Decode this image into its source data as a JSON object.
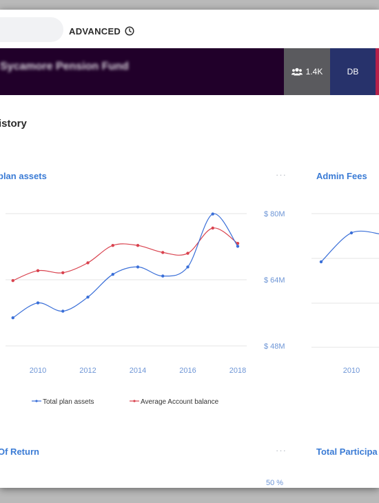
{
  "toolbar": {
    "advanced_label": "ADVANCED"
  },
  "banner": {
    "fund_name": "Sycamore Pension Fund",
    "members_count": "1.4K",
    "plan_type": "DB"
  },
  "section": {
    "title": "istory"
  },
  "cards": {
    "plan_assets_title": "plan assets",
    "admin_fees_title": "Admin Fees",
    "rate_of_return_title": "Of Return",
    "total_participants_title": "Total Participa",
    "more_label": "···"
  },
  "chart_data": [
    {
      "type": "line",
      "title": "plan assets",
      "x": [
        2009,
        2010,
        2011,
        2012,
        2013,
        2014,
        2015,
        2016,
        2017,
        2018
      ],
      "series": [
        {
          "name": "Total plan assets",
          "color": "#3a6fd8",
          "values": [
            54.8,
            58.4,
            56.4,
            59.8,
            65.3,
            67.1,
            64.9,
            67.1,
            79.9,
            72.1
          ]
        },
        {
          "name": "Average Account balance",
          "color": "#d9424e",
          "values": [
            63.8,
            66.2,
            65.7,
            68.1,
            72.3,
            72.3,
            70.6,
            70.4,
            76.5,
            72.8
          ]
        }
      ],
      "y_ticks": [
        "$ 80M",
        "$ 64M",
        "$ 48M"
      ],
      "y_tick_values": [
        80,
        64,
        48
      ],
      "x_ticks": [
        "2010",
        "2012",
        "2014",
        "2016",
        "2018"
      ],
      "x_tick_values": [
        2010,
        2012,
        2014,
        2016,
        2018
      ],
      "grid": true,
      "legend": "bottom"
    },
    {
      "type": "line",
      "title": "Admin Fees",
      "x": [
        2009,
        2010,
        2011
      ],
      "series": [
        {
          "color": "#3a6fd8",
          "values": [
            0.62,
            0.83,
            0.82
          ]
        }
      ],
      "x_ticks": [
        "2010"
      ],
      "x_tick_values": [
        2010
      ],
      "grid": true
    },
    {
      "type": "line",
      "title": "Of Return",
      "y_ticks": [
        "50 %"
      ],
      "grid": true
    }
  ]
}
